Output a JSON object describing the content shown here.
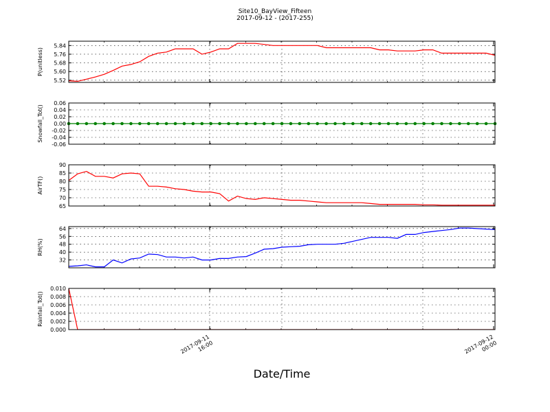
{
  "figure": {
    "title_line1": "Site10_BayView_Fifteen",
    "title_line2": "2017-09-12 - (2017-255)",
    "xlabel": "Date/Time",
    "x_tick_labels": [
      {
        "line1": "2017-09-11",
        "line2": "16:00"
      },
      {
        "line1": "2017-09-12",
        "line2": "00:00"
      }
    ]
  },
  "chart_data": [
    {
      "type": "line",
      "ylabel": "P(unitless)",
      "color": "#ff0000",
      "ylim": [
        5.5,
        5.88
      ],
      "yticks": [
        "5.52",
        "5.60",
        "5.68",
        "5.76",
        "5.84"
      ],
      "x_count": 49,
      "values": [
        5.515,
        5.51,
        5.53,
        5.55,
        5.575,
        5.61,
        5.65,
        5.665,
        5.69,
        5.74,
        5.77,
        5.78,
        5.81,
        5.81,
        5.81,
        5.76,
        5.78,
        5.81,
        5.81,
        5.86,
        5.86,
        5.86,
        5.85,
        5.84,
        5.84,
        5.84,
        5.84,
        5.84,
        5.84,
        5.82,
        5.82,
        5.82,
        5.82,
        5.82,
        5.82,
        5.8,
        5.8,
        5.79,
        5.79,
        5.79,
        5.8,
        5.8,
        5.77,
        5.77,
        5.77,
        5.77,
        5.77,
        5.77,
        5.75
      ]
    },
    {
      "type": "line",
      "ylabel": "Snowfall_Tot()",
      "color": "#008000",
      "markers": true,
      "ylim": [
        -0.06,
        0.06
      ],
      "yticks": [
        "-0.06",
        "-0.04",
        "-0.02",
        "0.00",
        "0.02",
        "0.04",
        "0.06"
      ],
      "x_count": 49,
      "values": [
        0,
        0,
        0,
        0,
        0,
        0,
        0,
        0,
        0,
        0,
        0,
        0,
        0,
        0,
        0,
        0,
        0,
        0,
        0,
        0,
        0,
        0,
        0,
        0,
        0,
        0,
        0,
        0,
        0,
        0,
        0,
        0,
        0,
        0,
        0,
        0,
        0,
        0,
        0,
        0,
        0,
        0,
        0,
        0,
        0,
        0,
        0,
        0,
        0
      ]
    },
    {
      "type": "line",
      "ylabel": "AirTF()",
      "color": "#ff0000",
      "ylim": [
        65,
        90
      ],
      "yticks": [
        "65",
        "70",
        "75",
        "80",
        "85",
        "90"
      ],
      "x_count": 49,
      "values": [
        80.5,
        84.5,
        86,
        83,
        83,
        82,
        84.5,
        85,
        84.5,
        77,
        77,
        76.5,
        75.5,
        75,
        74,
        73.5,
        73.5,
        72.5,
        68,
        71,
        69.5,
        69,
        70,
        69.5,
        69,
        68.5,
        68.5,
        68,
        67.5,
        67,
        67,
        67,
        67,
        67,
        66.5,
        66,
        66,
        66,
        66,
        66,
        65.7,
        65.7,
        65.5,
        65.5,
        65.5,
        65.5,
        65.5,
        65.5,
        65.5
      ]
    },
    {
      "type": "line",
      "ylabel": "RH(%)",
      "color": "#0000ff",
      "ylim": [
        24,
        66
      ],
      "yticks": [
        "32",
        "40",
        "48",
        "56",
        "64"
      ],
      "x_count": 49,
      "values": [
        25.5,
        26,
        27,
        25,
        25,
        32,
        29,
        33,
        34,
        38,
        37.5,
        35,
        35,
        34,
        35,
        32,
        32,
        33.5,
        33.5,
        35,
        35.5,
        39,
        43,
        43.5,
        45,
        45.5,
        46,
        47.5,
        48,
        48,
        48,
        49,
        51,
        53,
        55,
        55,
        55,
        54,
        58,
        58,
        60,
        61,
        62,
        63,
        64.5,
        64.5,
        64,
        63.5,
        63
      ]
    },
    {
      "type": "line",
      "ylabel": "Rainfall_Tot()",
      "color": "#ff0000",
      "ylim": [
        0,
        0.01
      ],
      "yticks": [
        "0.000",
        "0.002",
        "0.004",
        "0.006",
        "0.008",
        "0.010"
      ],
      "x_count": 49,
      "values": [
        0.01,
        0,
        0,
        0,
        0,
        0,
        0,
        0,
        0,
        0,
        0,
        0,
        0,
        0,
        0,
        0,
        0,
        0,
        0,
        0,
        0,
        0,
        0,
        0,
        0,
        0,
        0,
        0,
        0,
        0,
        0,
        0,
        0,
        0,
        0,
        0,
        0,
        0,
        0,
        0,
        0,
        0,
        0,
        0,
        0,
        0,
        0,
        0,
        0
      ]
    }
  ]
}
